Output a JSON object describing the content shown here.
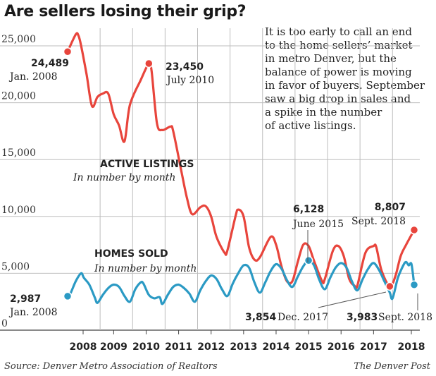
{
  "title": "Are sellers losing their grip?",
  "description_lines": [
    "It is too early to call an end",
    "to the home sellers’ market",
    "in metro Denver, but the",
    "balance of power is moving",
    "in favor of buyers. September",
    "saw a big drop in sales and",
    "a spike in the number",
    "of active listings."
  ],
  "source": "Source: Denver Metro Association of Realtors",
  "credit": "The Denver Post",
  "colors": {
    "active": "#e8453c",
    "sold": "#2b9ac4",
    "grid": "#bdbdbd"
  },
  "chart_data": {
    "type": "line",
    "x_start": "2008-01",
    "x_end": "2018-09",
    "ylim": [
      0,
      25000
    ],
    "yticks": [
      0,
      5000,
      10000,
      15000,
      20000,
      25000
    ],
    "ytick_labels": [
      "0",
      "5,000",
      "10,000",
      "15,000",
      "20,000",
      "25,000"
    ],
    "xtick_labels": [
      "2008",
      "2009",
      "2010",
      "2011",
      "2012",
      "2013",
      "2014",
      "2015",
      "2016",
      "2017",
      "2018"
    ],
    "series": [
      {
        "name": "ACTIVE LISTINGS",
        "subtitle": "In number by month",
        "color": "#e8453c",
        "anchors": [
          [
            "2008-01",
            24489
          ],
          [
            "2008-04",
            26000
          ],
          [
            "2008-05",
            25900
          ],
          [
            "2008-06",
            25000
          ],
          [
            "2008-08",
            22500
          ],
          [
            "2008-10",
            19700
          ],
          [
            "2008-12",
            20500
          ],
          [
            "2009-02",
            20800
          ],
          [
            "2009-04",
            20800
          ],
          [
            "2009-06",
            19000
          ],
          [
            "2009-08",
            18000
          ],
          [
            "2009-10",
            16600
          ],
          [
            "2009-12",
            19800
          ],
          [
            "2010-04",
            22000
          ],
          [
            "2010-07",
            23450
          ],
          [
            "2010-08",
            22800
          ],
          [
            "2010-10",
            18200
          ],
          [
            "2010-12",
            17600
          ],
          [
            "2011-03",
            17900
          ],
          [
            "2011-04",
            17500
          ],
          [
            "2011-07",
            14000
          ],
          [
            "2011-09",
            11700
          ],
          [
            "2011-11",
            10200
          ],
          [
            "2012-02",
            10800
          ],
          [
            "2012-04",
            10900
          ],
          [
            "2012-06",
            10000
          ],
          [
            "2012-08",
            8200
          ],
          [
            "2012-11",
            6800
          ],
          [
            "2012-12",
            7000
          ],
          [
            "2013-03",
            10000
          ],
          [
            "2013-04",
            10600
          ],
          [
            "2013-06",
            10000
          ],
          [
            "2013-08",
            7300
          ],
          [
            "2013-10",
            6200
          ],
          [
            "2013-12",
            6400
          ],
          [
            "2014-04",
            8200
          ],
          [
            "2014-06",
            7500
          ],
          [
            "2014-08",
            5600
          ],
          [
            "2014-10",
            4300
          ],
          [
            "2014-12",
            4300
          ],
          [
            "2015-02",
            6000
          ],
          [
            "2015-04",
            7500
          ],
          [
            "2015-06",
            7400
          ],
          [
            "2015-08",
            6100
          ],
          [
            "2015-11",
            4300
          ],
          [
            "2015-12",
            4500
          ],
          [
            "2016-03",
            7000
          ],
          [
            "2016-05",
            7400
          ],
          [
            "2016-07",
            6500
          ],
          [
            "2016-09",
            4500
          ],
          [
            "2016-11",
            3900
          ],
          [
            "2016-12",
            3900
          ],
          [
            "2017-03",
            6800
          ],
          [
            "2017-06",
            7400
          ],
          [
            "2017-07",
            7300
          ],
          [
            "2017-09",
            5200
          ],
          [
            "2017-12",
            3854
          ],
          [
            "2018-02",
            4700
          ],
          [
            "2018-04",
            6500
          ],
          [
            "2018-06",
            7500
          ],
          [
            "2018-09",
            8807
          ]
        ],
        "labels": [
          {
            "x": "2008-01",
            "value": "24,489",
            "date": "Jan. 2008"
          },
          {
            "x": "2010-07",
            "value": "23,450",
            "date": "July 2010"
          },
          {
            "x": "2017-12",
            "value": "3,854",
            "date": "Dec. 2017"
          },
          {
            "x": "2018-09",
            "value": "8,807",
            "date": "Sept. 2018"
          }
        ]
      },
      {
        "name": "HOMES SOLD",
        "subtitle": "In number by month",
        "color": "#2b9ac4",
        "anchors": [
          [
            "2008-01",
            2987
          ],
          [
            "2008-02",
            3200
          ],
          [
            "2008-04",
            4300
          ],
          [
            "2008-06",
            5000
          ],
          [
            "2008-07",
            4600
          ],
          [
            "2008-09",
            4000
          ],
          [
            "2008-11",
            2900
          ],
          [
            "2008-12",
            2400
          ],
          [
            "2009-02",
            3100
          ],
          [
            "2009-04",
            3700
          ],
          [
            "2009-06",
            4000
          ],
          [
            "2009-08",
            3800
          ],
          [
            "2009-10",
            3000
          ],
          [
            "2009-12",
            2500
          ],
          [
            "2010-02",
            3600
          ],
          [
            "2010-04",
            4200
          ],
          [
            "2010-05",
            4100
          ],
          [
            "2010-07",
            3100
          ],
          [
            "2010-09",
            2800
          ],
          [
            "2010-11",
            2900
          ],
          [
            "2010-12",
            2300
          ],
          [
            "2011-02",
            3100
          ],
          [
            "2011-04",
            3800
          ],
          [
            "2011-06",
            4000
          ],
          [
            "2011-08",
            3700
          ],
          [
            "2011-10",
            3200
          ],
          [
            "2011-12",
            2500
          ],
          [
            "2012-02",
            3500
          ],
          [
            "2012-04",
            4300
          ],
          [
            "2012-06",
            4800
          ],
          [
            "2012-08",
            4500
          ],
          [
            "2012-10",
            3600
          ],
          [
            "2012-12",
            3000
          ],
          [
            "2013-02",
            4100
          ],
          [
            "2013-04",
            5000
          ],
          [
            "2013-06",
            5700
          ],
          [
            "2013-08",
            5500
          ],
          [
            "2013-10",
            4200
          ],
          [
            "2013-12",
            3300
          ],
          [
            "2014-02",
            4200
          ],
          [
            "2014-04",
            5200
          ],
          [
            "2014-06",
            5800
          ],
          [
            "2014-08",
            5400
          ],
          [
            "2014-10",
            4400
          ],
          [
            "2014-12",
            3800
          ],
          [
            "2015-02",
            4700
          ],
          [
            "2015-04",
            5600
          ],
          [
            "2015-06",
            6128
          ],
          [
            "2015-08",
            5700
          ],
          [
            "2015-10",
            4400
          ],
          [
            "2015-12",
            3600
          ],
          [
            "2016-02",
            4600
          ],
          [
            "2016-04",
            5500
          ],
          [
            "2016-06",
            5900
          ],
          [
            "2016-08",
            5500
          ],
          [
            "2016-10",
            4300
          ],
          [
            "2016-12",
            3500
          ],
          [
            "2017-02",
            4500
          ],
          [
            "2017-04",
            5400
          ],
          [
            "2017-06",
            5900
          ],
          [
            "2017-08",
            5300
          ],
          [
            "2017-10",
            4300
          ],
          [
            "2017-12",
            3300
          ],
          [
            "2018-01",
            2800
          ],
          [
            "2018-03",
            4600
          ],
          [
            "2018-05",
            5700
          ],
          [
            "2018-06",
            6000
          ],
          [
            "2018-07",
            5700
          ],
          [
            "2018-08",
            5800
          ],
          [
            "2018-09",
            3983
          ]
        ],
        "labels": [
          {
            "x": "2008-01",
            "value": "2,987",
            "date": "Jan. 2008"
          },
          {
            "x": "2015-06",
            "value": "6,128",
            "date": "June 2015"
          },
          {
            "x": "2018-09",
            "value": "3,983",
            "date": "Sept. 2018"
          }
        ]
      }
    ]
  }
}
